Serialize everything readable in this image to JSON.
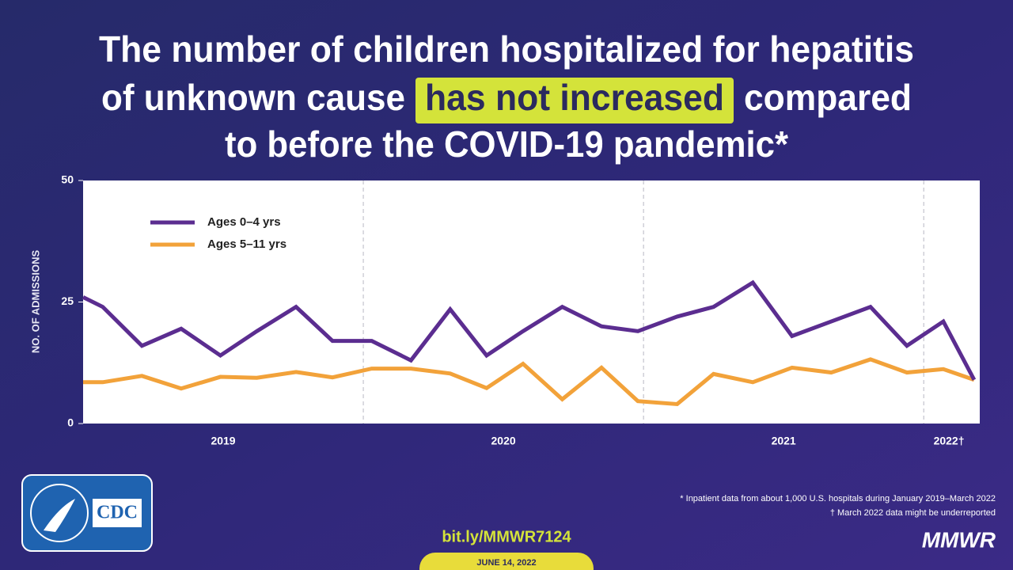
{
  "header": {
    "title_line_1": "The number of children hospitalized for hepatitis",
    "title_line_2_start": "of unknown cause",
    "title_highlight": "has not increased",
    "title_line_2_end": "compared",
    "title_line_3": "to before the COVID-19 pandemic*"
  },
  "chart_data": {
    "type": "line",
    "ylabel": "NO. OF ADMISSIONS",
    "x": [
      2019.0,
      2019.07,
      2019.21,
      2019.35,
      2019.49,
      2019.62,
      2019.76,
      2019.89,
      2020.03,
      2020.17,
      2020.31,
      2020.44,
      2020.57,
      2020.71,
      2020.85,
      2020.98,
      2021.12,
      2021.25,
      2021.39,
      2021.53,
      2021.67,
      2021.81,
      2021.94,
      2022.07,
      2022.18
    ],
    "series": [
      {
        "name": "Ages 0–4 yrs",
        "color": "#5b2d90",
        "values": [
          26,
          24,
          16,
          19.5,
          14,
          19,
          24,
          17,
          17,
          13,
          23.5,
          14,
          19,
          24,
          20,
          19,
          22,
          24,
          29,
          18,
          21,
          24,
          16,
          21,
          9
        ]
      },
      {
        "name": "Ages 5–11 yrs",
        "color": "#f2a23a",
        "values": [
          8.5,
          8.5,
          9.8,
          7.2,
          9.6,
          9.4,
          10.6,
          9.5,
          11.3,
          11.3,
          10.3,
          7.3,
          12.3,
          5.0,
          11.5,
          4.6,
          4.0,
          10.2,
          8.5,
          11.5,
          10.5,
          13.2,
          10.5,
          11.2,
          9
        ]
      }
    ],
    "xlim": [
      2019.0,
      2022.2
    ],
    "xticks": [
      {
        "value": 2019.5,
        "label": "2019"
      },
      {
        "value": 2020.5,
        "label": "2020"
      },
      {
        "value": 2021.5,
        "label": "2021"
      },
      {
        "value": 2022.09,
        "label": "2022†"
      }
    ],
    "year_dividers": [
      2020,
      2021,
      2022
    ],
    "ylim": [
      0,
      50
    ],
    "yticks": [
      0,
      25,
      50
    ],
    "legend": "upper left"
  },
  "footer": {
    "logo": "CDC",
    "link": "bit.ly/MMWR7124",
    "date": "JUNE 14, 2022",
    "notes": [
      "* Inpatient data from about 1,000 U.S. hospitals during January 2019–March 2022",
      "† March 2022 data might be underreported"
    ],
    "brand": "MMWR"
  }
}
